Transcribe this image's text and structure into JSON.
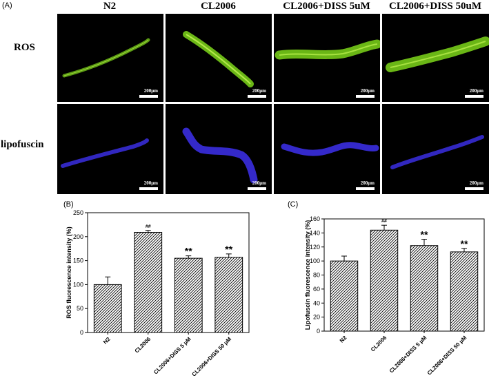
{
  "panel_a": {
    "label": "(A)",
    "columns": [
      "N2",
      "CL2006",
      "CL2006+DISS 5uM",
      "CL2006+DISS 50uM"
    ],
    "rows": [
      "ROS",
      "lipofuscin"
    ],
    "scale_bar": "200μm",
    "colors": {
      "ros": "#7cd61a",
      "lipofuscin": "#3a2ee0",
      "background": "#000000"
    }
  },
  "chart_data": [
    {
      "type": "bar",
      "panel_label": "(B)",
      "categories": [
        "N2",
        "CL2006",
        "CL2006+DISS 5 μM",
        "CL2006+DISS 50 μM"
      ],
      "values": [
        100,
        209,
        155,
        157
      ],
      "errors": [
        16,
        4,
        5,
        7
      ],
      "annotations": [
        "",
        "##",
        "**",
        "**"
      ],
      "ylabel": "ROS fluorescence intensity (%)",
      "xlabel": "",
      "ylim": [
        0,
        250
      ],
      "yticks": [
        0,
        50,
        100,
        150,
        200,
        250
      ],
      "bar_pattern": "diagonal-hatch",
      "grid": false
    },
    {
      "type": "bar",
      "panel_label": "(C)",
      "categories": [
        "N2",
        "CL2006",
        "CL2006+DISS 5 μM",
        "CL2006+DISS 50 μM"
      ],
      "values": [
        100,
        144,
        122,
        113
      ],
      "errors": [
        7,
        7,
        9,
        5
      ],
      "annotations": [
        "",
        "##",
        "**",
        "**"
      ],
      "ylabel": "Lipofuscin fluorescence intensity (%)",
      "xlabel": "",
      "ylim": [
        0,
        160
      ],
      "yticks": [
        0,
        20,
        40,
        60,
        80,
        100,
        120,
        140,
        160
      ],
      "bar_pattern": "diagonal-hatch",
      "grid": false
    }
  ]
}
